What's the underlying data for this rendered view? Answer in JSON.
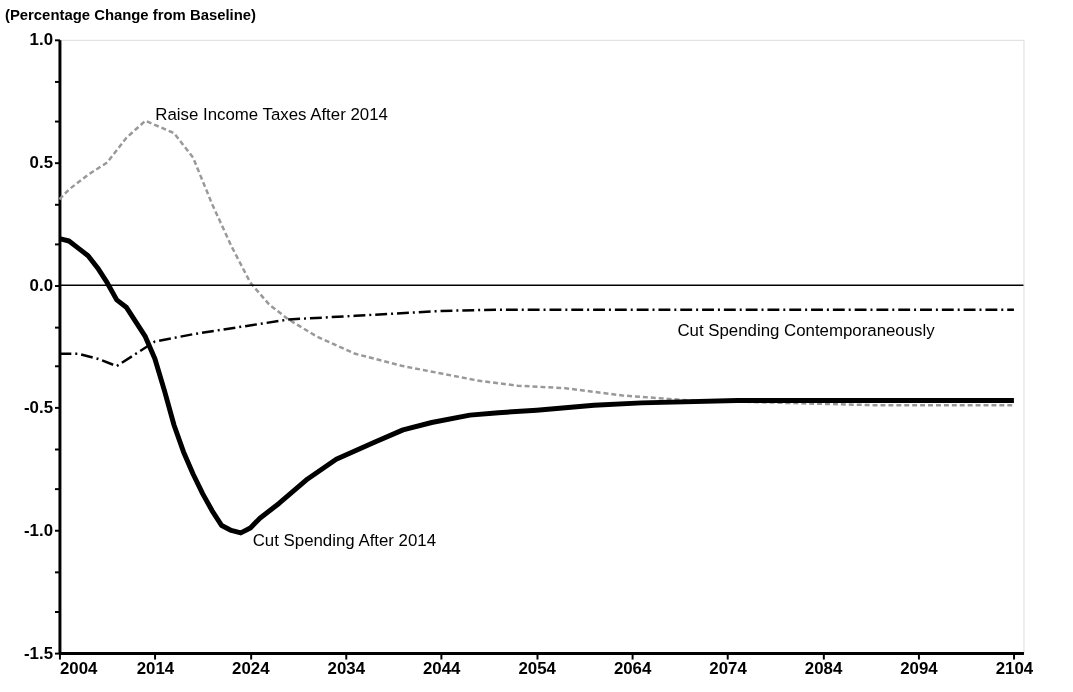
{
  "chart_data": {
    "type": "line",
    "ylabel": "(Percentage Change from Baseline)",
    "xlim": [
      2004,
      2105
    ],
    "xticks": [
      2004,
      2014,
      2024,
      2034,
      2044,
      2054,
      2064,
      2074,
      2084,
      2094,
      2104
    ],
    "ylim": [
      -1.5,
      1.0
    ],
    "yticks": [
      {
        "value": 1.0,
        "label": "1.0"
      },
      {
        "value": 0.83,
        "label": null
      },
      {
        "value": 0.67,
        "label": null
      },
      {
        "value": 0.5,
        "label": "0.5"
      },
      {
        "value": 0.33,
        "label": null
      },
      {
        "value": 0.17,
        "label": null
      },
      {
        "value": 0.0,
        "label": "0.0"
      },
      {
        "value": -0.17,
        "label": null
      },
      {
        "value": -0.33,
        "label": null
      },
      {
        "value": -0.5,
        "label": "-0.5"
      },
      {
        "value": -0.67,
        "label": null
      },
      {
        "value": -0.83,
        "label": null
      },
      {
        "value": -1.0,
        "label": "-1.0"
      },
      {
        "value": -1.17,
        "label": null
      },
      {
        "value": -1.33,
        "label": null
      },
      {
        "value": -1.5,
        "label": "-1.5"
      }
    ],
    "grid": false,
    "marker": "none",
    "ref_lines": [
      {
        "axis": "y",
        "value": 0,
        "label": null,
        "color": "#000000",
        "line_style": "solid"
      }
    ],
    "series": [
      {
        "name": "Raise Income Taxes After 2014",
        "color": "#999999",
        "line_style": "dotted",
        "x": [
          2004,
          2005,
          2007,
          2009,
          2011,
          2013,
          2016,
          2018,
          2020,
          2022,
          2024,
          2026,
          2028,
          2031,
          2035,
          2040,
          2044,
          2048,
          2052,
          2057,
          2063,
          2070,
          2080,
          2090,
          2104
        ],
        "values": [
          0.35,
          0.39,
          0.45,
          0.5,
          0.6,
          0.67,
          0.62,
          0.52,
          0.33,
          0.16,
          0.01,
          -0.08,
          -0.14,
          -0.21,
          -0.28,
          -0.33,
          -0.36,
          -0.39,
          -0.41,
          -0.42,
          -0.45,
          -0.47,
          -0.48,
          -0.49,
          -0.49
        ]
      },
      {
        "name": "Cut Spending After 2014",
        "color": "#000000",
        "line_style": "solid",
        "x": [
          2004,
          2005,
          2006,
          2007,
          2008,
          2009,
          2010,
          2011,
          2012,
          2013,
          2014,
          2015,
          2016,
          2017,
          2018,
          2019,
          2020,
          2021,
          2022,
          2023,
          2024,
          2025,
          2027,
          2030,
          2033,
          2037,
          2040,
          2043,
          2047,
          2050,
          2054,
          2060,
          2065,
          2075,
          2085,
          2095,
          2104
        ],
        "values": [
          0.19,
          0.18,
          0.15,
          0.12,
          0.07,
          0.01,
          -0.06,
          -0.09,
          -0.15,
          -0.21,
          -0.3,
          -0.43,
          -0.57,
          -0.68,
          -0.77,
          -0.85,
          -0.92,
          -0.98,
          -1.0,
          -1.01,
          -0.99,
          -0.95,
          -0.89,
          -0.79,
          -0.71,
          -0.64,
          -0.59,
          -0.56,
          -0.53,
          -0.52,
          -0.51,
          -0.49,
          -0.48,
          -0.47,
          -0.47,
          -0.47,
          -0.47
        ]
      },
      {
        "name": "Cut Spending Contemporaneously",
        "color": "#000000",
        "line_style": "dashed",
        "x": [
          2004,
          2006,
          2008,
          2010,
          2012,
          2014,
          2018,
          2023,
          2028,
          2035,
          2044,
          2050,
          2060,
          2080,
          2104
        ],
        "values": [
          -0.28,
          -0.28,
          -0.3,
          -0.33,
          -0.28,
          -0.23,
          -0.2,
          -0.17,
          -0.14,
          -0.125,
          -0.105,
          -0.1,
          -0.1,
          -0.1,
          -0.1
        ]
      }
    ]
  }
}
